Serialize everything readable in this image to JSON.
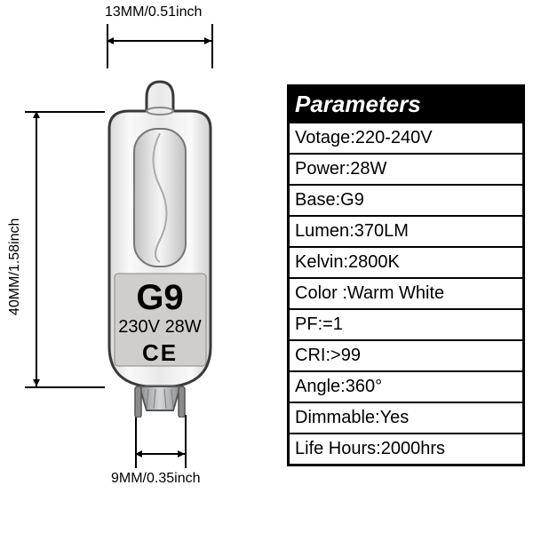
{
  "dimensions": {
    "top": "13MM/0.51inch",
    "left": "40MM/1.58inch",
    "bottom": "9MM/0.35inch"
  },
  "bulb_label": {
    "base": "G9",
    "volts_watts": "230V 28W",
    "cert": "CE"
  },
  "params": {
    "header": "Parameters",
    "rows": [
      {
        "k": "Votage",
        "v": "220-240V"
      },
      {
        "k": "Power",
        "v": "28W"
      },
      {
        "k": "Base",
        "v": "G9"
      },
      {
        "k": "Lumen",
        "v": "370LM"
      },
      {
        "k": "Kelvin",
        "v": "2800K"
      },
      {
        "k": "Color ",
        "v": "Warm White"
      },
      {
        "k": "PF",
        "v": "=1"
      },
      {
        "k": "CRI",
        "v": ">99"
      },
      {
        "k": "Angle",
        "v": "360°"
      },
      {
        "k": "Dimmable",
        "v": "Yes"
      },
      {
        "k": "Life Hours",
        "v": "2000hrs"
      }
    ]
  },
  "colors": {
    "glass_outline": "#3a3a3a",
    "glass_fill1": "#f2f2f2",
    "glass_fill2": "#d0d0d0",
    "metal": "#b3b4b6",
    "plate": "#c9c8c6",
    "pin": "#8a8b8d"
  }
}
